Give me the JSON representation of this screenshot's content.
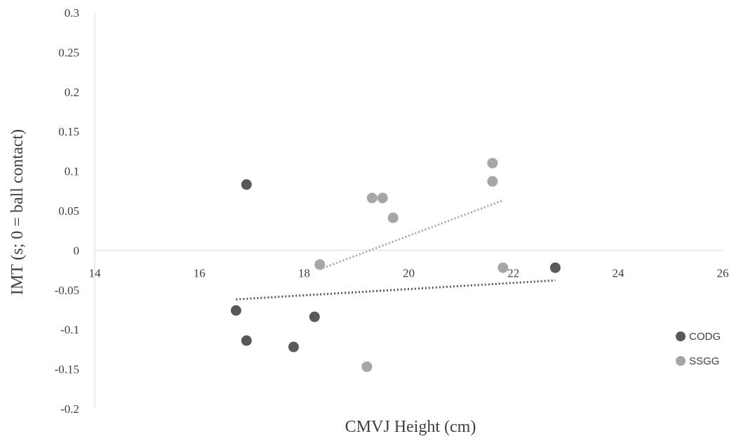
{
  "chart_data": {
    "type": "scatter",
    "xlabel": "CMVJ Height (cm)",
    "ylabel": "IMT (s; 0 = ball contact)",
    "xlim": [
      14,
      26
    ],
    "ylim": [
      -0.2,
      0.3
    ],
    "xticks": [
      14,
      16,
      18,
      20,
      22,
      24,
      26
    ],
    "xtick_labels": [
      "14",
      "16",
      "18",
      "20",
      "22",
      "24",
      "26"
    ],
    "yticks": [
      -0.2,
      -0.15,
      -0.1,
      -0.05,
      0,
      0.05,
      0.1,
      0.15,
      0.2,
      0.25,
      0.3
    ],
    "ytick_labels": [
      "-0.2",
      "-0.15",
      "-0.1",
      "-0.05",
      "0",
      "0.05",
      "0.1",
      "0.15",
      "0.2",
      "0.25",
      "0.3"
    ],
    "grid": false,
    "legend_position": "right",
    "series": [
      {
        "name": "CODG",
        "color": "#595959",
        "points": [
          {
            "x": 16.9,
            "y": 0.083
          },
          {
            "x": 16.7,
            "y": -0.076
          },
          {
            "x": 16.9,
            "y": -0.114
          },
          {
            "x": 17.8,
            "y": -0.122
          },
          {
            "x": 18.2,
            "y": -0.084
          },
          {
            "x": 22.8,
            "y": -0.022
          }
        ],
        "trendline": {
          "x": [
            16.7,
            22.8
          ],
          "y": [
            -0.062,
            -0.038
          ]
        }
      },
      {
        "name": "SSGG",
        "color": "#a6a6a6",
        "points": [
          {
            "x": 18.3,
            "y": -0.018
          },
          {
            "x": 19.3,
            "y": 0.066
          },
          {
            "x": 19.5,
            "y": 0.066
          },
          {
            "x": 19.7,
            "y": 0.041
          },
          {
            "x": 19.2,
            "y": -0.147
          },
          {
            "x": 21.6,
            "y": 0.11
          },
          {
            "x": 21.6,
            "y": 0.087
          },
          {
            "x": 21.8,
            "y": -0.022
          }
        ],
        "trendline": {
          "x": [
            18.3,
            21.8
          ],
          "y": [
            -0.024,
            0.063
          ]
        }
      }
    ]
  }
}
